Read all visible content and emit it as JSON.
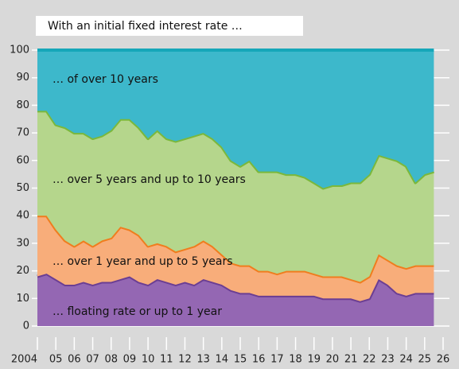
{
  "chart_data": {
    "type": "stacked_area",
    "title": "With an initial fixed interest rate …",
    "x": [
      2004,
      2004.5,
      2005,
      2005.5,
      2006,
      2006.5,
      2007,
      2007.5,
      2008,
      2008.5,
      2009,
      2009.5,
      2010,
      2010.5,
      2011,
      2011.5,
      2012,
      2012.5,
      2013,
      2013.5,
      2014,
      2014.5,
      2015,
      2015.5,
      2016,
      2016.5,
      2017,
      2017.5,
      2018,
      2018.5,
      2019,
      2019.5,
      2020,
      2020.5,
      2021,
      2021.5,
      2022,
      2022.5,
      2023,
      2023.5,
      2024,
      2024.5,
      2025,
      2025.5
    ],
    "series": [
      {
        "name": "… floating rate or up to 1 year",
        "color": "#9467b3",
        "line_color": "#6b3e93",
        "values": [
          18,
          19,
          17,
          15,
          15,
          16,
          15,
          16,
          16,
          17,
          18,
          16,
          15,
          17,
          16,
          15,
          16,
          15,
          17,
          16,
          15,
          13,
          12,
          12,
          11,
          11,
          11,
          11,
          11,
          11,
          11,
          10,
          10,
          10,
          10,
          9,
          10,
          17,
          15,
          12,
          11,
          12,
          12,
          12
        ]
      },
      {
        "name": "… over 1 year and up to 5 years",
        "color": "#f8ad7a",
        "line_color": "#f07d1e",
        "values": [
          22,
          21,
          18,
          16,
          14,
          15,
          14,
          15,
          16,
          19,
          17,
          17,
          14,
          13,
          13,
          12,
          12,
          14,
          14,
          13,
          11,
          10,
          10,
          10,
          9,
          9,
          8,
          9,
          9,
          9,
          8,
          8,
          8,
          8,
          7,
          7,
          8,
          9,
          9,
          10,
          10,
          10,
          10,
          10
        ]
      },
      {
        "name": "… over 5 years and up to 10 years",
        "color": "#b5d68c",
        "line_color": "#7bb83b",
        "values": [
          38,
          38,
          38,
          41,
          41,
          39,
          39,
          38,
          39,
          39,
          40,
          39,
          39,
          41,
          39,
          40,
          40,
          40,
          39,
          39,
          39,
          37,
          36,
          38,
          36,
          36,
          37,
          35,
          35,
          34,
          33,
          32,
          33,
          33,
          35,
          36,
          37,
          36,
          37,
          38,
          37,
          30,
          33,
          34
        ]
      },
      {
        "name": "… of over 10 years",
        "color": "#3db8cb",
        "line_color": "#16a7b9",
        "values": [
          22,
          22,
          27,
          28,
          30,
          30,
          32,
          31,
          29,
          25,
          25,
          28,
          32,
          29,
          32,
          33,
          32,
          31,
          30,
          32,
          35,
          40,
          42,
          40,
          44,
          44,
          44,
          45,
          45,
          46,
          48,
          50,
          49,
          49,
          48,
          48,
          45,
          38,
          39,
          40,
          42,
          48,
          45,
          44
        ]
      }
    ],
    "xlim": [
      2004,
      2026
    ],
    "xticks": [
      {
        "value": 2004,
        "label": "2004"
      },
      {
        "value": 2005,
        "label": "05"
      },
      {
        "value": 2006,
        "label": "06"
      },
      {
        "value": 2007,
        "label": "07"
      },
      {
        "value": 2008,
        "label": "08"
      },
      {
        "value": 2009,
        "label": "09"
      },
      {
        "value": 2010,
        "label": "10"
      },
      {
        "value": 2011,
        "label": "11"
      },
      {
        "value": 2012,
        "label": "12"
      },
      {
        "value": 2013,
        "label": "13"
      },
      {
        "value": 2014,
        "label": "14"
      },
      {
        "value": 2015,
        "label": "15"
      },
      {
        "value": 2016,
        "label": "16"
      },
      {
        "value": 2017,
        "label": "17"
      },
      {
        "value": 2018,
        "label": "18"
      },
      {
        "value": 2019,
        "label": "19"
      },
      {
        "value": 2020,
        "label": "20"
      },
      {
        "value": 2021,
        "label": "21"
      },
      {
        "value": 2022,
        "label": "22"
      },
      {
        "value": 2023,
        "label": "23"
      },
      {
        "value": 2024,
        "label": "24"
      },
      {
        "value": 2025,
        "label": "25"
      },
      {
        "value": 2026,
        "label": "26"
      }
    ],
    "ylim": [
      0,
      100
    ],
    "yticks": [
      0,
      10,
      20,
      30,
      40,
      50,
      60,
      70,
      80,
      90,
      100
    ],
    "grid": true
  }
}
